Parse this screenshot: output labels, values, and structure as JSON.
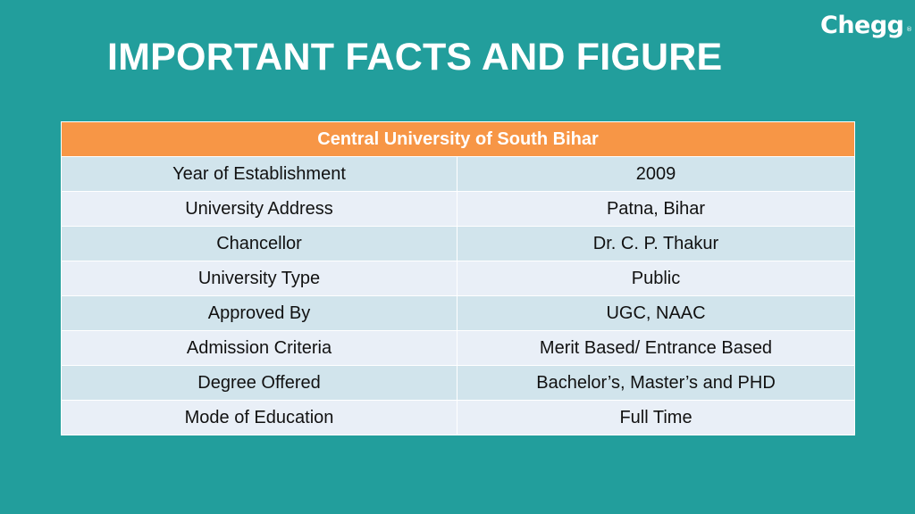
{
  "slide": {
    "title": "IMPORTANT FACTS AND FIGURE",
    "logo_text": "Chegg",
    "logo_mark": "®"
  },
  "table": {
    "header": "Central University of South Bihar",
    "rows": [
      {
        "label": "Year of Establishment",
        "value": "2009"
      },
      {
        "label": "University Address",
        "value": "Patna, Bihar"
      },
      {
        "label": "Chancellor",
        "value": "Dr. C. P. Thakur"
      },
      {
        "label": "University Type",
        "value": "Public"
      },
      {
        "label": "Approved By",
        "value": "UGC, NAAC"
      },
      {
        "label": "Admission Criteria",
        "value": "Merit Based/ Entrance Based"
      },
      {
        "label": "Degree Offered",
        "value": "Bachelor’s, Master’s and PHD"
      },
      {
        "label": "Mode of Education",
        "value": "Full Time"
      }
    ]
  },
  "colors": {
    "background": "#229e9c",
    "header_fill": "#f79646",
    "row_band_dark": "#d1e4ec",
    "row_band_light": "#e9eff7",
    "title_text": "#ffffff"
  }
}
